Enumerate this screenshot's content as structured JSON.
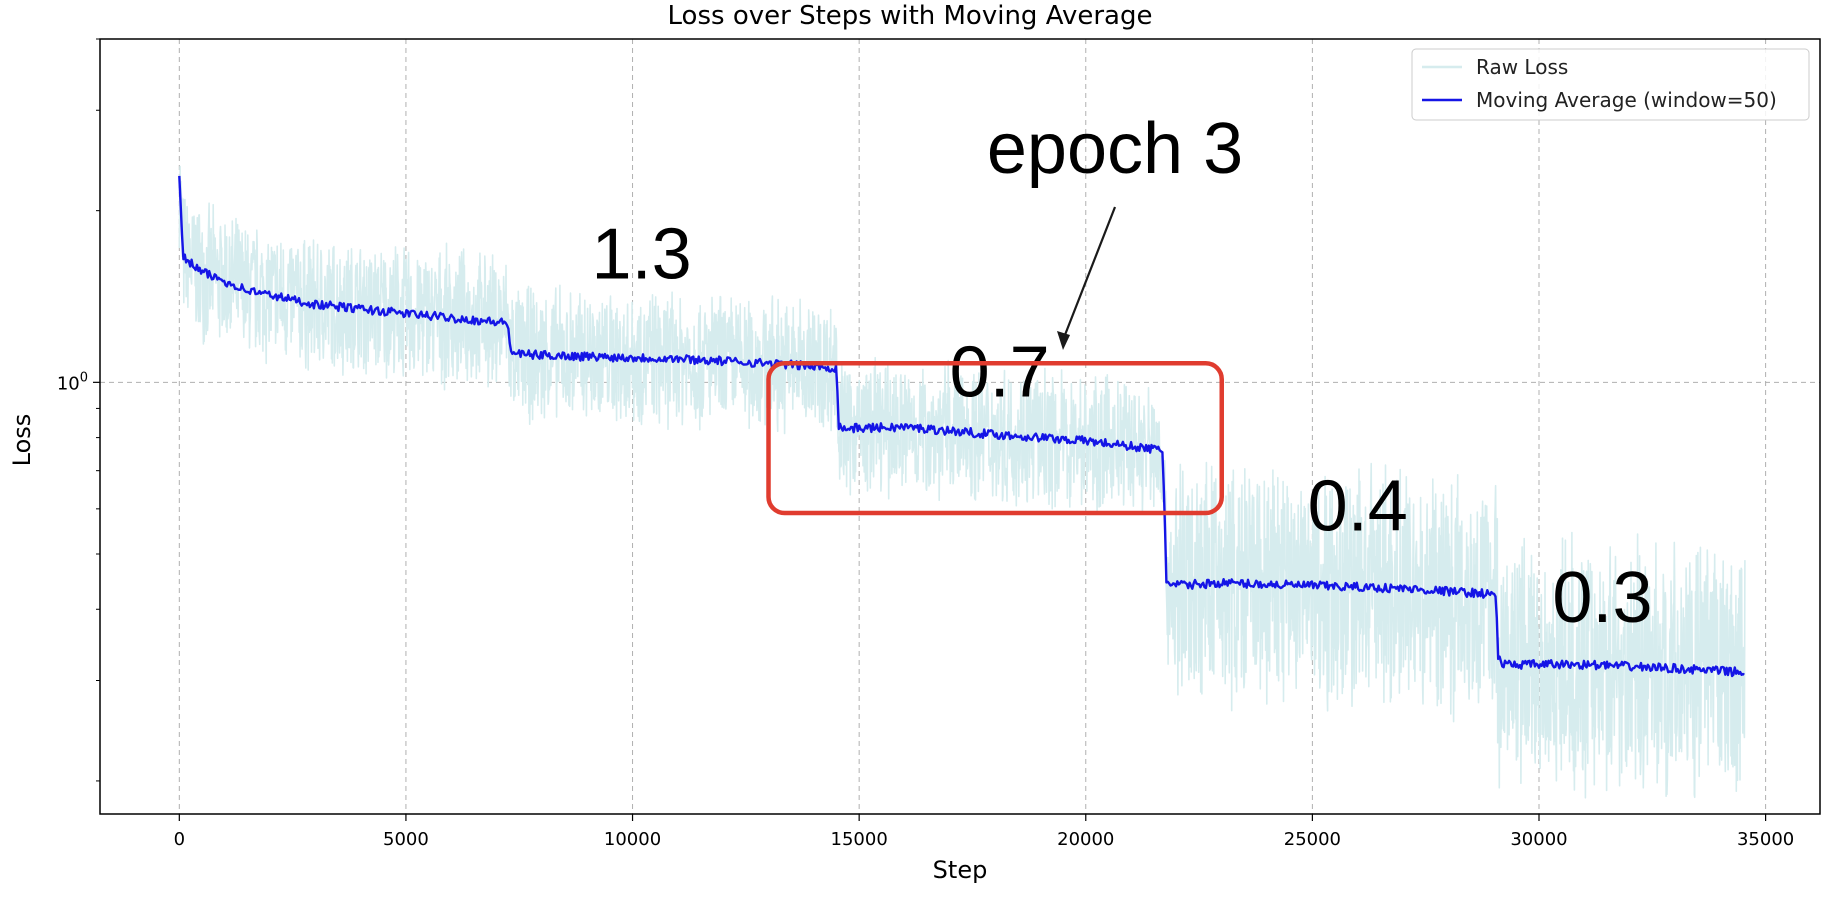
{
  "chart_data": {
    "type": "line",
    "title": "Loss over Steps with Moving Average",
    "xlabel": "Step",
    "ylabel": "Loss",
    "yscale": "log",
    "xlim": [
      -1750,
      36200
    ],
    "ylim": [
      0.175,
      4.0
    ],
    "x_ticks": [
      0,
      5000,
      10000,
      15000,
      20000,
      25000,
      30000,
      35000
    ],
    "x_tick_labels": [
      "0",
      "5000",
      "10000",
      "15000",
      "20000",
      "25000",
      "30000",
      "35000"
    ],
    "y_ticks": [
      1.0
    ],
    "y_tick_label_base": "10",
    "y_tick_label_exp": "0",
    "grid": true,
    "legend_position": "top-right",
    "series": [
      {
        "name": "Raw Loss",
        "color": "#d6ecee",
        "style": "noisy band around moving average",
        "x": [
          0,
          7300,
          14550,
          21800,
          29100,
          34550
        ],
        "values": [
          1.55,
          1.08,
          0.78,
          0.44,
          0.3,
          0.3
        ]
      },
      {
        "name": "Moving Average (window=50)",
        "color": "#1515e6",
        "x": [
          0,
          80,
          500,
          1500,
          3000,
          5000,
          7250,
          7300,
          7450,
          9000,
          11000,
          13000,
          14500,
          14550,
          14650,
          16000,
          18000,
          20000,
          21700,
          21780,
          21850,
          23000,
          25000,
          27000,
          29050,
          29100,
          29200,
          31000,
          33000,
          34550
        ],
        "values": [
          2.3,
          1.66,
          1.56,
          1.45,
          1.37,
          1.32,
          1.27,
          1.14,
          1.12,
          1.11,
          1.1,
          1.08,
          1.06,
          0.84,
          0.83,
          0.835,
          0.81,
          0.79,
          0.76,
          0.45,
          0.44,
          0.445,
          0.44,
          0.435,
          0.425,
          0.33,
          0.32,
          0.32,
          0.315,
          0.31
        ]
      }
    ],
    "legend": [
      "Raw Loss",
      "Moving Average (window=50)"
    ],
    "annotations": {
      "epoch_label": "epoch 3",
      "values": [
        {
          "text": "1.3",
          "x": 10200,
          "loss": 1.52
        },
        {
          "text": "0.7",
          "x": 18100,
          "loss": 0.945
        },
        {
          "text": "0.4",
          "x": 26000,
          "loss": 0.55
        },
        {
          "text": "0.3",
          "x": 31400,
          "loss": 0.38
        }
      ],
      "highlight_box": {
        "x_range": [
          13000,
          23000
        ],
        "loss_range": [
          0.59,
          1.08
        ],
        "color": "#e03c2f"
      }
    }
  }
}
